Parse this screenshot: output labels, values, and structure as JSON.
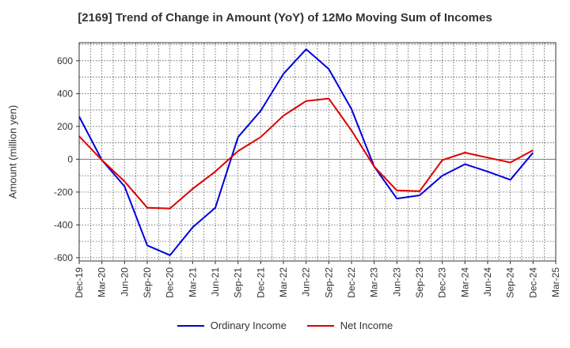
{
  "chart_data": {
    "type": "line",
    "title": "[2169]  Trend of Change in Amount (YoY) of 12Mo Moving Sum of Incomes",
    "ylabel": "Amount (million yen)",
    "xlabel": "",
    "categories": [
      "Dec-19",
      "Mar-20",
      "Jun-20",
      "Sep-20",
      "Dec-20",
      "Mar-21",
      "Jun-21",
      "Sep-21",
      "Dec-21",
      "Mar-22",
      "Jun-22",
      "Sep-22",
      "Dec-22",
      "Mar-23",
      "Jun-23",
      "Sep-23",
      "Dec-23",
      "Mar-24",
      "Jun-24",
      "Sep-24",
      "Dec-24",
      "Mar-25"
    ],
    "ylim": [
      -620,
      710
    ],
    "yticks": [
      600,
      400,
      200,
      0,
      -200,
      -400,
      -600
    ],
    "ytick_labels": [
      "600",
      "400",
      "200",
      "0",
      "-200",
      "-400",
      "-600"
    ],
    "grid": true,
    "legend_position": "bottom",
    "series": [
      {
        "name": "Ordinary Income",
        "color": "#0000dd",
        "values": [
          260,
          -5,
          -165,
          -525,
          -585,
          -415,
          -295,
          135,
          295,
          520,
          670,
          550,
          305,
          -45,
          -240,
          -220,
          -100,
          -30,
          -75,
          -125,
          40,
          null
        ]
      },
      {
        "name": "Net Income",
        "color": "#dd0000",
        "values": [
          140,
          -5,
          -135,
          -295,
          -300,
          -180,
          -75,
          50,
          135,
          265,
          355,
          370,
          175,
          -45,
          -190,
          -195,
          -5,
          40,
          10,
          -20,
          55,
          null
        ]
      }
    ]
  }
}
